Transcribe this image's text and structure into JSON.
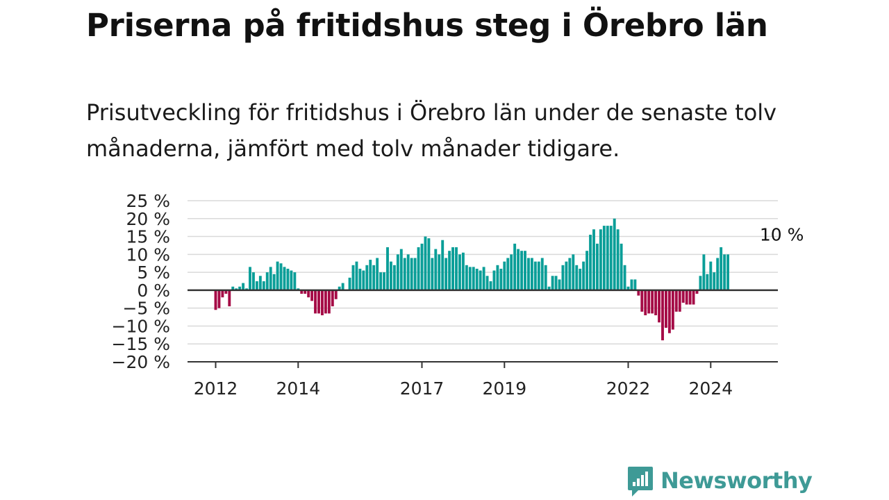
{
  "title": "Priserna på fritidshus steg i Örebro län",
  "subtitle": "Prisutveckling för fritidshus i Örebro län under de senaste tolv månaderna, jämfört med tolv månader tidigare.",
  "brand": {
    "name": "Newsworthy",
    "color": "#3e9a96"
  },
  "colors": {
    "positive": "#0a9e98",
    "negative": "#a50b46",
    "grid": "#d9d9d9",
    "axis": "#333333"
  },
  "chart_data": {
    "type": "bar",
    "title": "",
    "xlabel": "",
    "ylabel": "",
    "ylim": [
      -20,
      25
    ],
    "y_ticks": [
      25,
      20,
      15,
      10,
      5,
      0,
      -5,
      -10,
      -15,
      -20
    ],
    "y_tick_labels": [
      "25 %",
      "20 %",
      "15 %",
      "10 %",
      "5 %",
      "0 %",
      "−5 %",
      "−10 %",
      "−15 %",
      "−20 %"
    ],
    "x_ticks": [
      {
        "label": "2012",
        "date": "2012-01"
      },
      {
        "label": "2014",
        "date": "2014-01"
      },
      {
        "label": "2017",
        "date": "2017-01"
      },
      {
        "label": "2019",
        "date": "2019-01"
      },
      {
        "label": "2022",
        "date": "2022-01"
      },
      {
        "label": "2024",
        "date": "2024-01"
      }
    ],
    "grid": true,
    "frequency": "monthly",
    "start": "2012-01",
    "values": [
      -5.5,
      -5,
      -2,
      -1,
      -4.5,
      1,
      0.5,
      1,
      2,
      0.5,
      6.5,
      5,
      2.5,
      4,
      2.5,
      5,
      6.5,
      4.5,
      8,
      7.5,
      6.5,
      6,
      5.5,
      5,
      0.5,
      -1,
      -1,
      -2,
      -3,
      -6.5,
      -6.5,
      -7,
      -6.5,
      -6.5,
      -4.5,
      -2.5,
      1,
      2,
      0,
      3.5,
      7,
      8,
      6,
      5.5,
      7,
      8.5,
      7,
      9,
      5,
      5,
      12,
      8,
      7,
      10,
      11.5,
      9,
      10,
      9,
      9,
      12,
      13,
      15,
      14.5,
      9,
      11.5,
      10,
      14,
      9,
      11,
      12,
      12,
      10,
      10.5,
      7,
      6.5,
      6.5,
      6,
      5.5,
      6.5,
      4,
      2.5,
      5.5,
      7,
      6,
      8,
      9,
      10,
      13,
      11.5,
      11,
      11,
      9,
      9,
      8,
      8,
      9,
      7,
      1,
      4,
      4,
      3,
      7,
      8,
      9,
      10,
      7,
      6,
      8,
      11,
      15.5,
      17,
      13,
      17,
      18,
      18,
      18,
      20,
      17,
      13,
      7,
      1,
      3,
      3,
      -1.5,
      -6,
      -7,
      -6.5,
      -6.5,
      -7,
      -9,
      -14,
      -10.5,
      -12,
      -11,
      -6,
      -6,
      -3.5,
      -4,
      -4,
      -4,
      -1,
      4,
      10,
      4.5,
      8,
      5,
      9,
      12,
      10,
      10
    ],
    "annotations": [
      {
        "text": "10 %",
        "date": "2025-03",
        "value": 10
      }
    ]
  }
}
